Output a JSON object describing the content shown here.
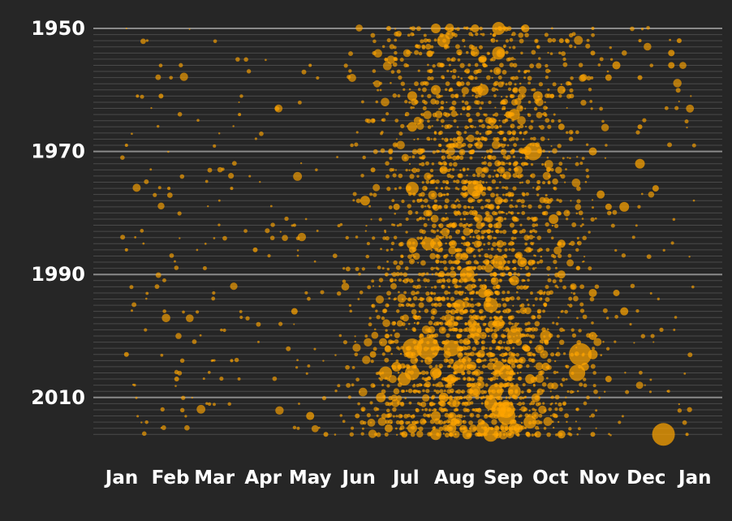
{
  "chart_data": {
    "type": "scatter",
    "title": "",
    "xlabel": "",
    "ylabel": "",
    "x_axis": {
      "type": "day-of-year",
      "ticks": [
        "Jan",
        "Feb",
        "Mar",
        "Apr",
        "May",
        "Jun",
        "Jul",
        "Aug",
        "Sep",
        "Oct",
        "Nov",
        "Dec",
        "Jan"
      ],
      "range_days": [
        0,
        365
      ]
    },
    "y_axis": {
      "type": "year",
      "ticks": [
        "1950",
        "1970",
        "1990",
        "2010"
      ],
      "range": [
        1950,
        2016
      ],
      "inverted": true
    },
    "grid": true,
    "legend": "none",
    "colors": {
      "point": "#ffa500",
      "background": "#262626",
      "major_grid": "#8a8a8a",
      "minor_grid": "#4a4a4a"
    },
    "encoding": "Each dot is an event: x = day of year, y = year, dot size = magnitude",
    "points": [
      [
        3,
        1950,
        1
      ],
      [
        170,
        1950,
        3
      ],
      [
        200,
        1950,
        6
      ],
      [
        225,
        1950,
        5
      ],
      [
        240,
        1950,
        8
      ],
      [
        257,
        1950,
        5
      ],
      [
        300,
        1950,
        2
      ],
      [
        205,
        1952,
        8
      ],
      [
        280,
        1952,
        3
      ],
      [
        330,
        1952,
        2
      ],
      [
        355,
        1952,
        3
      ],
      [
        240,
        1954,
        8
      ],
      [
        350,
        1954,
        4
      ],
      [
        300,
        1954,
        3
      ],
      [
        315,
        1956,
        5
      ],
      [
        350,
        1956,
        4
      ],
      [
        120,
        1956,
        2
      ],
      [
        200,
        1960,
        6
      ],
      [
        230,
        1960,
        7
      ],
      [
        280,
        1960,
        5
      ],
      [
        310,
        1958,
        4
      ],
      [
        330,
        1958,
        3
      ],
      [
        10,
        1961,
        2
      ],
      [
        25,
        1961,
        3
      ],
      [
        185,
        1961,
        6
      ],
      [
        265,
        1961,
        6
      ],
      [
        250,
        1964,
        7
      ],
      [
        75,
        1964,
        2
      ],
      [
        160,
        1965,
        3
      ],
      [
        185,
        1966,
        6
      ],
      [
        280,
        1966,
        4
      ],
      [
        330,
        1966,
        3
      ],
      [
        3,
        1969,
        2
      ],
      [
        262,
        1970,
        11
      ],
      [
        300,
        1970,
        5
      ],
      [
        190,
        1970,
        4
      ],
      [
        330,
        1972,
        6
      ],
      [
        205,
        1973,
        5
      ],
      [
        160,
        1973,
        3
      ],
      [
        185,
        1976,
        8
      ],
      [
        225,
        1976,
        10
      ],
      [
        340,
        1976,
        4
      ],
      [
        30,
        1976,
        2
      ],
      [
        70,
        1976,
        2
      ],
      [
        305,
        1977,
        5
      ],
      [
        155,
        1978,
        6
      ],
      [
        240,
        1978,
        5
      ],
      [
        310,
        1979,
        4
      ],
      [
        320,
        1979,
        6
      ],
      [
        175,
        1979,
        4
      ],
      [
        275,
        1981,
        6
      ],
      [
        240,
        1982,
        4
      ],
      [
        110,
        1982,
        2
      ],
      [
        185,
        1985,
        7
      ],
      [
        195,
        1985,
        8
      ],
      [
        200,
        1985,
        7
      ],
      [
        280,
        1985,
        5
      ],
      [
        3,
        1986,
        2
      ],
      [
        85,
        1986,
        3
      ],
      [
        185,
        1986,
        4
      ],
      [
        240,
        1988,
        8
      ],
      [
        255,
        1988,
        6
      ],
      [
        280,
        1990,
        5
      ],
      [
        220,
        1990,
        9
      ],
      [
        250,
        1991,
        6
      ],
      [
        230,
        1993,
        6
      ],
      [
        300,
        1993,
        5
      ],
      [
        315,
        1993,
        4
      ],
      [
        215,
        1995,
        7
      ],
      [
        235,
        1995,
        9
      ],
      [
        110,
        1996,
        4
      ],
      [
        320,
        1996,
        5
      ],
      [
        240,
        1998,
        7
      ],
      [
        225,
        1999,
        8
      ],
      [
        250,
        2000,
        9
      ],
      [
        270,
        2000,
        7
      ],
      [
        300,
        2000,
        5
      ],
      [
        185,
        2002,
        12
      ],
      [
        195,
        2002,
        14
      ],
      [
        210,
        2002,
        10
      ],
      [
        292,
        2003,
        14
      ],
      [
        300,
        2003,
        6
      ],
      [
        160,
        2003,
        4
      ],
      [
        70,
        2004,
        2
      ],
      [
        3,
        2003,
        3
      ],
      [
        175,
        2005,
        6
      ],
      [
        215,
        2005,
        8
      ],
      [
        240,
        2005,
        7
      ],
      [
        270,
        2005,
        5
      ],
      [
        295,
        2005,
        5
      ],
      [
        168,
        2006,
        8
      ],
      [
        185,
        2006,
        9
      ],
      [
        200,
        2006,
        7
      ],
      [
        245,
        2006,
        9
      ],
      [
        290,
        2006,
        10
      ],
      [
        180,
        2007,
        8
      ],
      [
        210,
        2007,
        6
      ],
      [
        260,
        2007,
        6
      ],
      [
        310,
        2007,
        4
      ],
      [
        35,
        2007,
        3
      ],
      [
        225,
        2009,
        7
      ],
      [
        238,
        2009,
        9
      ],
      [
        250,
        2009,
        8
      ],
      [
        165,
        2010,
        6
      ],
      [
        205,
        2010,
        6
      ],
      [
        235,
        2011,
        8
      ],
      [
        245,
        2012,
        10
      ],
      [
        240,
        2012,
        9
      ],
      [
        120,
        2013,
        5
      ],
      [
        150,
        2013,
        3
      ],
      [
        200,
        2013,
        6
      ],
      [
        245,
        2013,
        11
      ],
      [
        260,
        2014,
        8
      ],
      [
        170,
        2015,
        5
      ],
      [
        185,
        2015,
        6
      ],
      [
        210,
        2015,
        6
      ],
      [
        230,
        2015,
        8
      ],
      [
        250,
        2015,
        7
      ],
      [
        265,
        2016,
        4
      ],
      [
        280,
        2016,
        5
      ],
      [
        300,
        2016,
        3
      ],
      [
        345,
        2016,
        14
      ],
      [
        360,
        2016,
        2
      ],
      [
        200,
        2016,
        7
      ],
      [
        220,
        2016,
        6
      ],
      [
        235,
        2016,
        9
      ],
      [
        180,
        2016,
        4
      ],
      [
        130,
        2016,
        3
      ]
    ]
  }
}
